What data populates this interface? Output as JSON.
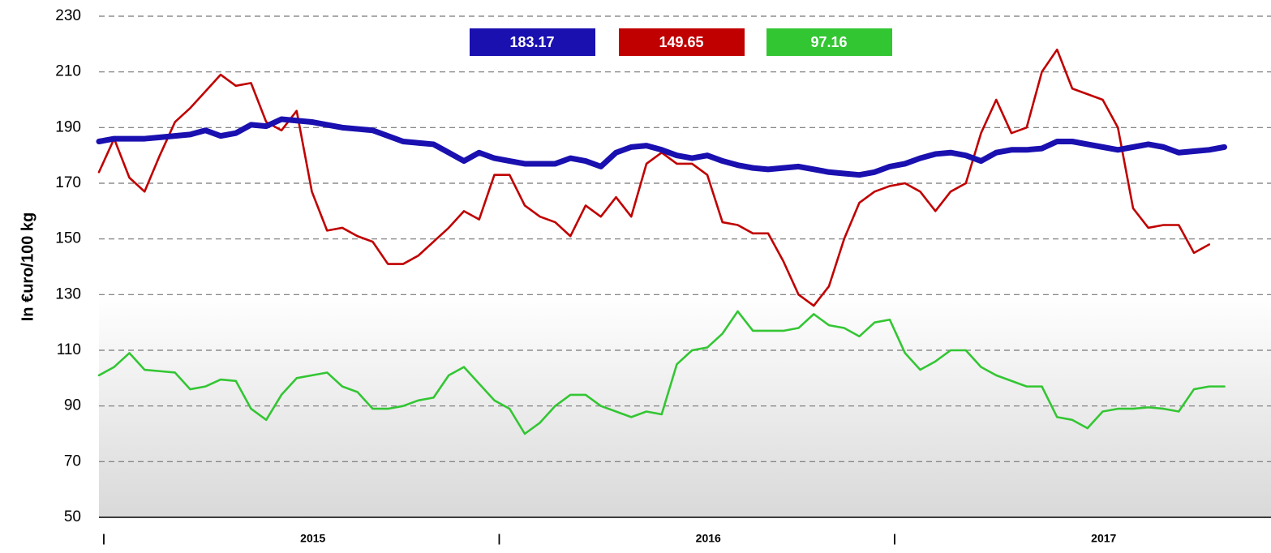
{
  "chart_data": {
    "type": "line",
    "y_label": "In €uro/100 kg",
    "ylim": [
      50,
      230
    ],
    "yticks": [
      50,
      70,
      90,
      110,
      130,
      150,
      170,
      190,
      210,
      230
    ],
    "grid": true,
    "legend": "top",
    "categories": [
      "|",
      null,
      null,
      null,
      null,
      null,
      null,
      null,
      null,
      null,
      null,
      null,
      null,
      "2015",
      null,
      null,
      null,
      null,
      null,
      null,
      null,
      null,
      null,
      null,
      null,
      null,
      "|",
      null,
      null,
      null,
      null,
      null,
      null,
      null,
      null,
      null,
      null,
      null,
      null,
      "2016",
      null,
      null,
      null,
      null,
      null,
      null,
      null,
      null,
      null,
      null,
      null,
      null,
      "|",
      null,
      null,
      null,
      null,
      null,
      null,
      null,
      null,
      null,
      null,
      null,
      null,
      "2017",
      null,
      null,
      null,
      null,
      null,
      null,
      null,
      null,
      null
    ],
    "series": [
      {
        "name": "183.17",
        "color": "#1a10b0",
        "values": [
          185,
          186,
          186,
          186,
          186.5,
          187,
          187.5,
          189,
          187,
          188,
          191,
          190.5,
          193,
          192.5,
          192,
          191,
          190,
          189.5,
          189,
          187,
          185,
          184.5,
          184,
          181,
          178,
          181,
          179,
          178,
          177,
          177,
          177,
          179,
          178,
          176,
          181,
          183,
          183.5,
          182,
          180,
          179,
          180,
          178,
          176.5,
          175.5,
          175,
          175.5,
          176,
          175,
          174,
          173.5,
          173,
          174,
          176,
          177,
          179,
          180.5,
          181,
          180,
          178,
          181,
          182,
          182,
          182.5,
          185,
          185,
          184,
          183,
          182,
          183,
          184,
          183,
          181,
          181.5,
          182,
          183
        ]
      },
      {
        "name": "149.65",
        "color": "#c00000",
        "values": [
          174,
          186,
          172,
          167,
          180,
          192,
          197,
          203,
          209,
          205,
          206,
          192,
          189,
          196,
          167,
          153,
          154,
          151,
          149,
          141,
          141,
          144,
          149,
          154,
          160,
          157,
          173,
          173,
          162,
          158,
          156,
          151,
          162,
          158,
          165,
          158,
          177,
          181,
          177,
          177,
          173,
          156,
          155,
          152,
          152,
          142,
          130,
          126,
          133,
          150,
          163,
          167,
          169,
          170,
          167,
          160,
          167,
          170,
          188,
          200,
          188,
          190,
          210,
          218,
          204,
          202,
          200,
          190,
          161,
          154,
          155,
          155,
          145,
          148,
          null
        ]
      },
      {
        "name": "97.16",
        "color": "#33c633",
        "values": [
          101,
          104,
          109,
          103,
          102.5,
          102,
          96,
          97,
          99.5,
          99,
          89,
          85,
          94,
          100,
          101,
          102,
          97,
          95,
          89,
          89,
          90,
          92,
          93,
          101,
          104,
          98,
          92,
          89,
          80,
          84,
          90,
          94,
          94,
          90,
          88,
          86,
          88,
          87,
          105,
          110,
          111,
          116,
          124,
          117,
          117,
          117,
          118,
          123,
          119,
          118,
          115,
          120,
          121,
          109,
          103,
          106,
          110,
          110,
          104,
          101,
          99,
          97,
          97,
          86,
          85,
          82,
          88,
          89,
          89,
          89.5,
          89,
          88,
          96,
          97,
          97
        ]
      }
    ]
  }
}
